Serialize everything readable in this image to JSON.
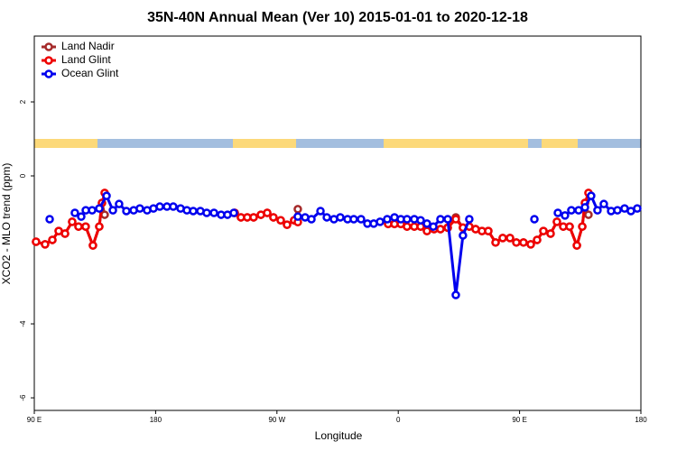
{
  "chart_data": {
    "type": "line",
    "title": "35N-40N Annual Mean (Ver 10)   2015-01-01 to 2020-12-18",
    "x_label": "Longitude",
    "y_label": "XCO2 - MLO trend (ppm)",
    "xlim": [
      90,
      540
    ],
    "ylim": [
      3.78,
      -6.34
    ],
    "xticks": [
      {
        "value": 90,
        "label": "90 E"
      },
      180,
      {
        "value": 270,
        "label": "90 W"
      },
      {
        "value": 360,
        "label": "0"
      },
      {
        "value": 450,
        "label": "90 E"
      },
      {
        "value": 540,
        "label": "180"
      }
    ],
    "yticks": [
      2,
      0,
      -4,
      -6
    ],
    "legend": "top-left",
    "series": [
      {
        "name": "Land Nadir",
        "color": "#a52a2a",
        "x": [
          91.3,
          98,
          103.4,
          108.1,
          112.8,
          118.1,
          122.8,
          128.1,
          133.5,
          138.2,
          140.2,
          142.2,
          null,
          238.7,
          243.3,
          248,
          252.7,
          258.1,
          262.8,
          267.4,
          272.8,
          277.5,
          282.8,
          285.5,
          null,
          352.5,
          357.2,
          361.9,
          366.5,
          371.9,
          376.6,
          381.3,
          386.6,
          391.3,
          396.7,
          402.7,
          408,
          412.7,
          417.4,
          422.1,
          426.8,
          432.2,
          437.5,
          442.9,
          447.6,
          452.9,
          458.3,
          463,
          467.7,
          473,
          477.7,
          482.4,
          487.1,
          492.5,
          496.5,
          498.5,
          501.1
        ],
        "values": [
          -1.78,
          -1.85,
          -1.73,
          -1.49,
          -1.56,
          -1.24,
          -1.37,
          -1.37,
          -1.88,
          -1.37,
          -0.73,
          -1.05,
          null,
          -1.0,
          -1.12,
          -1.12,
          -1.12,
          -1.05,
          -1.0,
          -1.12,
          -1.2,
          -1.32,
          -1.2,
          -0.9,
          null,
          -1.3,
          -1.3,
          -1.3,
          -1.37,
          -1.37,
          -1.37,
          -1.49,
          -1.44,
          -1.44,
          -1.4,
          -1.12,
          -1.4,
          -1.37,
          -1.44,
          -1.49,
          -1.49,
          -1.8,
          -1.68,
          -1.68,
          -1.8,
          -1.8,
          -1.85,
          -1.73,
          -1.49,
          -1.56,
          -1.24,
          -1.37,
          -1.37,
          -1.88,
          -1.37,
          -0.73,
          -1.05
        ]
      },
      {
        "name": "Land Glint",
        "color": "#ee0000",
        "x": [
          91.3,
          98,
          103.4,
          108.1,
          112.8,
          118.1,
          122.8,
          128.1,
          133.5,
          138.2,
          140.2,
          142.2,
          null,
          238.7,
          243.3,
          248,
          252.7,
          258.1,
          262.8,
          267.4,
          272.8,
          277.5,
          282.8,
          285.5,
          null,
          352.5,
          357.2,
          361.9,
          366.5,
          371.9,
          376.6,
          381.3,
          386.6,
          391.3,
          396.7,
          402.7,
          408,
          412.7,
          417.4,
          422.1,
          426.8,
          432.2,
          437.5,
          442.9,
          447.6,
          452.9,
          458.3,
          463,
          467.7,
          473,
          477.7,
          482.4,
          487.1,
          492.5,
          496.5,
          498.5,
          501.1
        ],
        "values": [
          -1.78,
          -1.85,
          -1.73,
          -1.49,
          -1.56,
          -1.24,
          -1.37,
          -1.37,
          -1.88,
          -1.37,
          -0.73,
          -0.46,
          null,
          -1.0,
          -1.12,
          -1.12,
          -1.12,
          -1.05,
          -1.0,
          -1.12,
          -1.2,
          -1.32,
          -1.2,
          -1.25,
          null,
          -1.3,
          -1.3,
          -1.3,
          -1.37,
          -1.37,
          -1.37,
          -1.49,
          -1.44,
          -1.44,
          -1.4,
          -1.17,
          -1.4,
          -1.37,
          -1.44,
          -1.49,
          -1.49,
          -1.8,
          -1.68,
          -1.68,
          -1.8,
          -1.8,
          -1.85,
          -1.73,
          -1.49,
          -1.56,
          -1.24,
          -1.37,
          -1.37,
          -1.88,
          -1.37,
          -0.73,
          -0.46
        ]
      },
      {
        "name": "Ocean Glint",
        "color": "#0000ee",
        "x": [
          101.4,
          null,
          120.1,
          124.8,
          128.2,
          132.9,
          138.2,
          143.6,
          148.3,
          152.9,
          158.3,
          163.7,
          168.3,
          173.7,
          178.4,
          183.1,
          188.4,
          193.1,
          198.5,
          203.2,
          207.9,
          213.2,
          217.9,
          223.3,
          228.6,
          233.3,
          238,
          null,
          285.5,
          290.9,
          295.6,
          302.3,
          307,
          312.3,
          317,
          322.4,
          327,
          332.4,
          337.1,
          341.8,
          346.5,
          351.8,
          357.2,
          361.9,
          366.5,
          371.9,
          376.6,
          381.3,
          386,
          391.3,
          396.7,
          402.7,
          408,
          412.7,
          null,
          461,
          null,
          478.4,
          483.7,
          488.4,
          493.8,
          498.5,
          503.1,
          507.8,
          512.5,
          517.9,
          522.6,
          527.9,
          532.6,
          537.3
        ],
        "values": [
          -1.17,
          null,
          -1.0,
          -1.1,
          -0.93,
          -0.93,
          -0.88,
          -0.54,
          -0.93,
          -0.76,
          -0.95,
          -0.93,
          -0.88,
          -0.93,
          -0.88,
          -0.83,
          -0.83,
          -0.83,
          -0.88,
          -0.93,
          -0.95,
          -0.95,
          -1.0,
          -1.0,
          -1.05,
          -1.05,
          -1.0,
          null,
          -1.1,
          -1.12,
          -1.17,
          -0.95,
          -1.12,
          -1.17,
          -1.12,
          -1.17,
          -1.17,
          -1.17,
          -1.29,
          -1.29,
          -1.24,
          -1.17,
          -1.12,
          -1.17,
          -1.17,
          -1.17,
          -1.2,
          -1.29,
          -1.37,
          -1.17,
          -1.17,
          -3.22,
          -1.61,
          -1.17,
          null,
          -1.17,
          null,
          -1.0,
          -1.07,
          -0.93,
          -0.93,
          -0.85,
          -0.54,
          -0.93,
          -0.76,
          -0.95,
          -0.93,
          -0.88,
          -0.95,
          -0.88
        ]
      }
    ]
  }
}
